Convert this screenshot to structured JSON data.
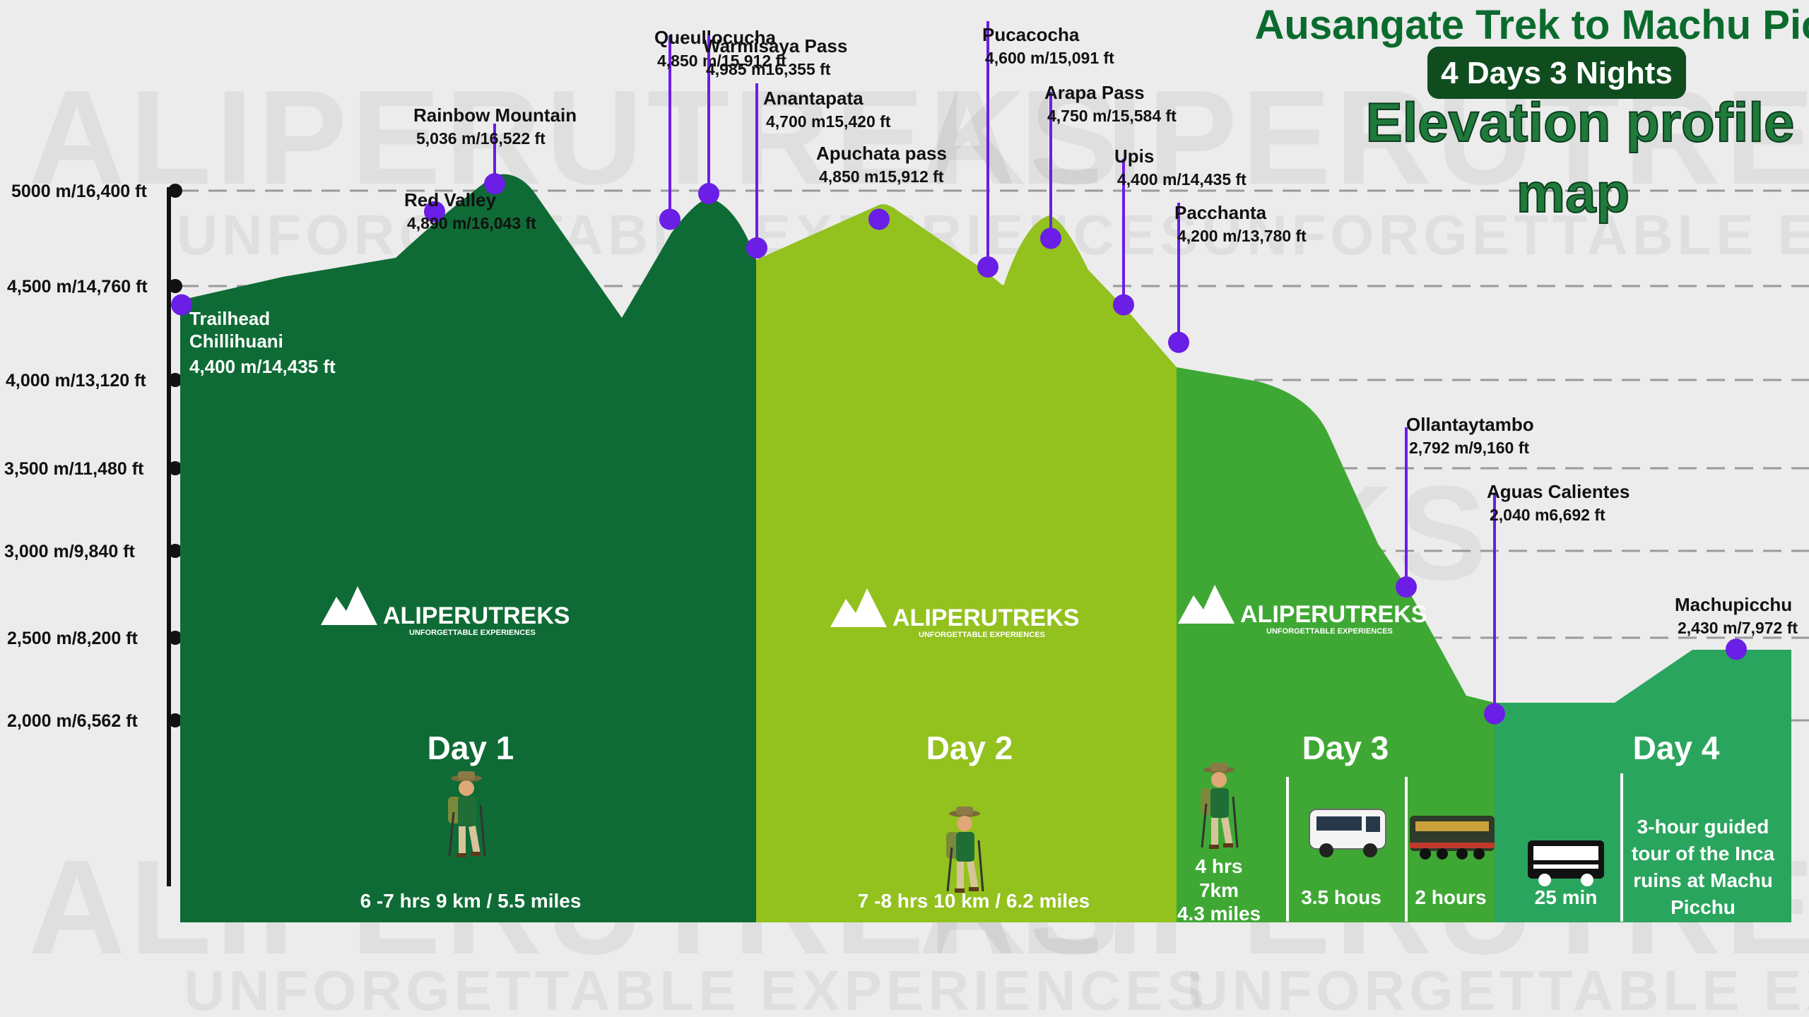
{
  "title": {
    "line1": "Ausangate Trek to Machu Picchu",
    "line2": "4 Days 3 Nights",
    "line3a": "Elevation profile",
    "line3b": "map"
  },
  "watermark": {
    "brand": "ALIPERUTREKS",
    "tagline": "UNFORGETTABLE EXPERIENCES"
  },
  "logo": {
    "name": "ALIPERUTREKS",
    "tagline": "UNFORGETTABLE EXPERIENCES"
  },
  "colors": {
    "day1": "#0f6b35",
    "day2": "#93c11e",
    "day3": "#3fa834",
    "day4": "#2aa55e",
    "marker": "#6a1ee6",
    "title": "#0b6b2e",
    "pill": "#0f4d1f"
  },
  "days": [
    {
      "label": "Day 1",
      "info": "6 -7 hrs 9 km / 5.5 miles"
    },
    {
      "label": "Day 2",
      "info": "7 -8 hrs 10 km / 6.2 miles"
    },
    {
      "label": "Day 3",
      "hike_line1": "4 hrs",
      "hike_line2": "7km",
      "hike_line3": "4.3 miles",
      "bus": "3.5 hous",
      "train": "2 hours"
    },
    {
      "label": "Day 4",
      "bus": "25 min",
      "tour_line1": "3-hour guided",
      "tour_line2": "tour of the Inca",
      "tour_line3": "ruins at Machu",
      "tour_line4": "Picchu"
    }
  ],
  "chart_data": {
    "type": "area",
    "y_ticks": [
      "5000 m/16,400 ft",
      "4,500 m/14,760 ft",
      "4,000 m/13,120 ft",
      "3,500 m/11,480 ft",
      "3,000 m/9,840 ft",
      "2,500 m/8,200 ft",
      "2,000 m/6,562 ft"
    ],
    "y_tick_values": [
      5000,
      4500,
      4000,
      3500,
      3000,
      2500,
      2000
    ],
    "ylim": [
      2000,
      5000
    ],
    "grid": true,
    "points": [
      {
        "name": "Trailhead",
        "name2": "Chillihuani",
        "alt": "4,400 m/14,435 ft",
        "elev": 4400,
        "day": 1
      },
      {
        "name": "Red Valley",
        "alt": "4,890 m/16,043 ft",
        "elev": 4890,
        "day": 1
      },
      {
        "name": "Rainbow Mountain",
        "alt": "5,036 m/16,522 ft",
        "elev": 5036,
        "day": 1
      },
      {
        "name": "Queullocucha",
        "alt": "4,850 m/15,912 ft",
        "elev": 4850,
        "day": 1
      },
      {
        "name": "Warmisaya Pass",
        "alt": "4,985 m16,355 ft",
        "elev": 4985,
        "day": 1
      },
      {
        "name": "Anantapata",
        "alt": "4,700 m15,420 ft",
        "elev": 4700,
        "day": 1
      },
      {
        "name": "Apuchata pass",
        "alt": "4,850 m15,912 ft",
        "elev": 4850,
        "day": 2
      },
      {
        "name": "Pucacocha",
        "alt": "4,600 m/15,091 ft",
        "elev": 4600,
        "day": 2
      },
      {
        "name": "Arapa Pass",
        "alt": "4,750 m/15,584 ft",
        "elev": 4750,
        "day": 2
      },
      {
        "name": "Upis",
        "alt": "4,400 m/14,435 ft",
        "elev": 4400,
        "day": 2
      },
      {
        "name": "Pacchanta",
        "alt": "4,200 m/13,780 ft",
        "elev": 4200,
        "day": 2
      },
      {
        "name": "Ollantaytambo",
        "alt": "2,792 m/9,160 ft",
        "elev": 2792,
        "day": 3
      },
      {
        "name": "Aguas Calientes",
        "alt": "2,040 m6,692 ft",
        "elev": 2040,
        "day": 3
      },
      {
        "name": "Machupicchu",
        "alt": "2,430 m/7,972 ft",
        "elev": 2430,
        "day": 4
      }
    ]
  }
}
